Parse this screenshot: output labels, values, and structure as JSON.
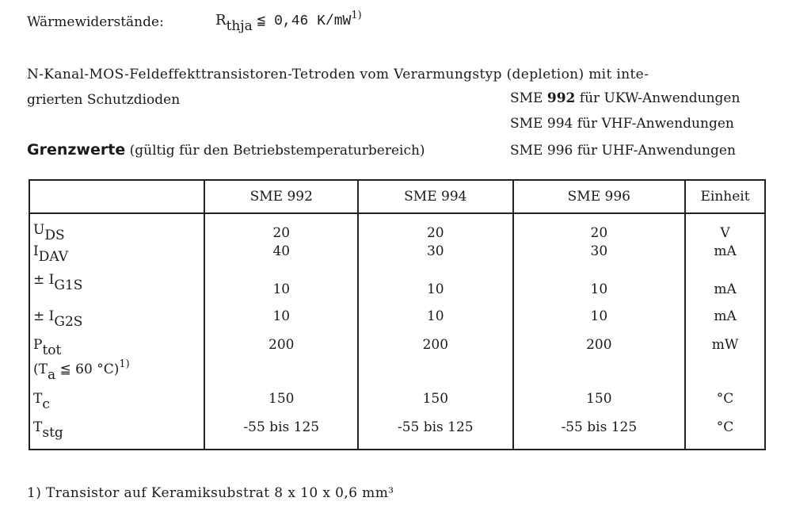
{
  "thermal": {
    "label": "Wärmewiderstände:",
    "symbol": "R",
    "sub": "thja",
    "relation": "≦ 0,46 K/mW",
    "footref": "1)"
  },
  "intro": {
    "line1": "N-Kanal-MOS-Feldeffekttransistoren-Tetroden vom Verarmungstyp (depletion) mit inte-",
    "line2": "grierten Schutzdioden",
    "models": [
      {
        "prefix": "SME ",
        "num": "992",
        "suffix": " für UKW-Anwendungen"
      },
      {
        "prefix": "SME ",
        "num": "994",
        "suffix": " für VHF-Anwendungen"
      },
      {
        "prefix": "SME ",
        "num": "996",
        "suffix": " für UHF-Anwendungen"
      }
    ]
  },
  "heading": {
    "title": "Grenzwerte",
    "note": "(gültig für den Betriebstemperaturbereich)"
  },
  "table": {
    "headers": [
      "",
      "SME 992",
      "SME 994",
      "SME 996",
      "Einheit"
    ],
    "rows": [
      {
        "pre": "",
        "sym": "U",
        "sub": "DS",
        "extra": "",
        "v": [
          "20",
          "20",
          "20"
        ],
        "unit": "V"
      },
      {
        "pre": "",
        "sym": "I",
        "sub": "DAV",
        "extra": "",
        "v": [
          "40",
          "30",
          "30"
        ],
        "unit": "mA"
      },
      {
        "pre": "± ",
        "sym": "I",
        "sub": "G1S",
        "extra": "",
        "v": [
          "10",
          "10",
          "10"
        ],
        "unit": "mA"
      },
      {
        "pre": "± ",
        "sym": "I",
        "sub": "G2S",
        "extra": "",
        "v": [
          "10",
          "10",
          "10"
        ],
        "unit": "mA"
      },
      {
        "pre": "",
        "sym": "P",
        "sub": "tot",
        "extra": "(T",
        "extrasub": "a",
        "extra2": " ≦ 60 °C)",
        "extrasup": "1)",
        "v": [
          "200",
          "200",
          "200"
        ],
        "unit": "mW"
      },
      {
        "pre": "",
        "sym": "T",
        "sub": "c",
        "extra": "",
        "v": [
          "150",
          "150",
          "150"
        ],
        "unit": "°C"
      },
      {
        "pre": "",
        "sym": "T",
        "sub": "stg",
        "extra": "",
        "v": [
          "-55 bis 125",
          "-55 bis 125",
          "-55 bis 125"
        ],
        "unit": "°C"
      }
    ]
  },
  "footnote": "1) Transistor auf Keramiksubstrat 8 x 10 x 0,6 mm³"
}
